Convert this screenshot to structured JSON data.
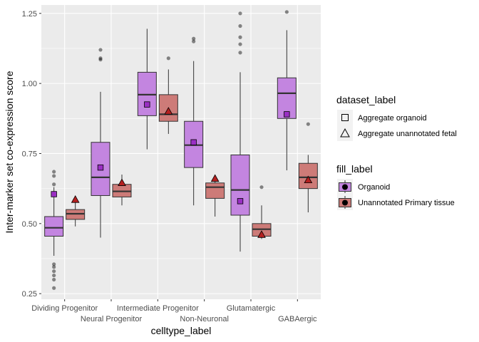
{
  "chart_data": {
    "type": "boxplot",
    "xlabel": "celltype_label",
    "ylabel": "Inter-marker set co-expression score",
    "ylim": [
      0.23,
      1.28
    ],
    "yticks": [
      "0.25",
      "0.50",
      "0.75",
      "1.00",
      "1.25"
    ],
    "ytick_values": [
      0.25,
      0.5,
      0.75,
      1.0,
      1.25
    ],
    "grid": true,
    "panel_background": "#ebebeb",
    "categories": [
      "Dividing Progenitor",
      "Neural Progenitor",
      "Intermediate Progenitor",
      "Non-Neuronal",
      "Glutamatergic",
      "GABAergic"
    ],
    "series": [
      {
        "name": "Organoid",
        "fill": "#c385e0",
        "boxes": [
          {
            "whisker_low": 0.385,
            "q1": 0.455,
            "median": 0.485,
            "q3": 0.525,
            "whisker_high": 0.63,
            "outliers": [
              0.27,
              0.3,
              0.315,
              0.33,
              0.345,
              0.355,
              0.64,
              0.67,
              0.685
            ]
          },
          {
            "whisker_low": 0.45,
            "q1": 0.6,
            "median": 0.665,
            "q3": 0.79,
            "whisker_high": 0.97,
            "outliers": [
              1.085,
              1.09,
              1.12
            ]
          },
          {
            "whisker_low": 0.765,
            "q1": 0.885,
            "median": 0.96,
            "q3": 1.04,
            "whisker_high": 1.195,
            "outliers": []
          },
          {
            "whisker_low": 0.565,
            "q1": 0.7,
            "median": 0.78,
            "q3": 0.865,
            "whisker_high": 1.08,
            "outliers": [
              1.15,
              1.16
            ]
          },
          {
            "whisker_low": 0.4,
            "q1": 0.53,
            "median": 0.62,
            "q3": 0.745,
            "whisker_high": 1.04,
            "outliers": [
              1.11,
              1.14,
              1.165,
              1.205,
              1.25
            ]
          },
          {
            "whisker_low": 0.69,
            "q1": 0.875,
            "median": 0.965,
            "q3": 1.02,
            "whisker_high": 1.19,
            "outliers": [
              1.255
            ]
          }
        ],
        "aggregate_marker": "square",
        "aggregate_fill": "#9a2fc4",
        "aggregate": [
          0.605,
          0.7,
          0.925,
          0.79,
          0.58,
          0.89
        ]
      },
      {
        "name": "Unannotated Primary tissue",
        "fill": "#cd7b78",
        "boxes": [
          {
            "whisker_low": 0.49,
            "q1": 0.515,
            "median": 0.535,
            "q3": 0.55,
            "whisker_high": 0.575,
            "outliers": []
          },
          {
            "whisker_low": 0.565,
            "q1": 0.595,
            "median": 0.615,
            "q3": 0.64,
            "whisker_high": 0.675,
            "outliers": []
          },
          {
            "whisker_low": 0.82,
            "q1": 0.865,
            "median": 0.89,
            "q3": 0.96,
            "whisker_high": 1.05,
            "outliers": [
              1.09
            ]
          },
          {
            "whisker_low": 0.525,
            "q1": 0.59,
            "median": 0.63,
            "q3": 0.645,
            "whisker_high": 0.67,
            "outliers": []
          },
          {
            "whisker_low": 0.445,
            "q1": 0.455,
            "median": 0.48,
            "q3": 0.5,
            "whisker_high": 0.565,
            "outliers": [
              0.63
            ]
          },
          {
            "whisker_low": 0.54,
            "q1": 0.625,
            "median": 0.665,
            "q3": 0.715,
            "whisker_high": 0.745,
            "outliers": [
              0.855
            ]
          }
        ],
        "aggregate_marker": "triangle",
        "aggregate_fill": "#b52020",
        "aggregate": [
          0.585,
          0.645,
          0.9,
          0.66,
          0.46,
          0.655
        ]
      }
    ],
    "legends": [
      {
        "title": "dataset_label",
        "items": [
          {
            "label": "Aggregate organoid",
            "shape": "square"
          },
          {
            "label": "Aggregate unannotated fetal",
            "shape": "triangle"
          }
        ]
      },
      {
        "title": "fill_label",
        "items": [
          {
            "label": "Organoid",
            "fill": "#c385e0"
          },
          {
            "label": "Unannotated Primary tissue",
            "fill": "#cd7b78"
          }
        ]
      }
    ]
  }
}
